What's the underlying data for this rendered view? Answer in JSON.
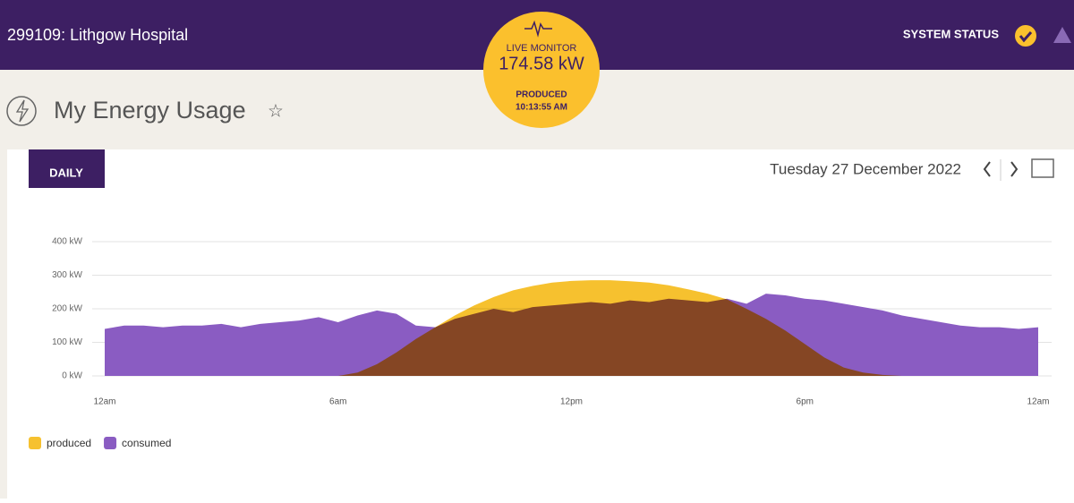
{
  "header": {
    "site": "299109: Lithgow Hospital",
    "status": "SYSTEM STATUS"
  },
  "monitor": {
    "label": "LIVE MONITOR",
    "reading": "174.58 kW",
    "kind": "PRODUCED",
    "time": "10:13:55 AM"
  },
  "page": {
    "title": "My Energy Usage",
    "tab": "DAILY",
    "date": "Tuesday 27 December 2022"
  },
  "chart_data": {
    "type": "area",
    "x": [
      0,
      0.5,
      1,
      1.5,
      2,
      2.5,
      3,
      3.5,
      4,
      4.5,
      5,
      5.5,
      6,
      6.5,
      7,
      7.5,
      8,
      8.5,
      9,
      9.5,
      10,
      10.5,
      11,
      11.5,
      12,
      12.5,
      13,
      13.5,
      14,
      14.5,
      15,
      15.5,
      16,
      16.5,
      17,
      17.5,
      18,
      18.5,
      19,
      19.5,
      20,
      20.5,
      21,
      21.5,
      22,
      22.5,
      23,
      23.5,
      24
    ],
    "xlim": [
      0,
      24
    ],
    "xticks": [
      {
        "value": 0,
        "label": "12am"
      },
      {
        "value": 6,
        "label": "6am"
      },
      {
        "value": 12,
        "label": "12pm"
      },
      {
        "value": 18,
        "label": "6pm"
      },
      {
        "value": 24,
        "label": "12am"
      }
    ],
    "ylim": [
      0,
      400
    ],
    "yticks": [
      {
        "value": 0,
        "label": "0 kW"
      },
      {
        "value": 100,
        "label": "100 kW"
      },
      {
        "value": 200,
        "label": "200 kW"
      },
      {
        "value": 300,
        "label": "300 kW"
      },
      {
        "value": 400,
        "label": "400 kW"
      }
    ],
    "grid": true,
    "series": [
      {
        "name": "consumed",
        "color": "#8a5cc2",
        "values": [
          140,
          150,
          150,
          145,
          150,
          150,
          155,
          145,
          155,
          160,
          165,
          175,
          160,
          180,
          195,
          185,
          150,
          145,
          170,
          185,
          200,
          190,
          205,
          210,
          215,
          220,
          215,
          225,
          220,
          230,
          225,
          220,
          230,
          215,
          245,
          240,
          230,
          225,
          215,
          205,
          195,
          180,
          170,
          160,
          150,
          145,
          145,
          140,
          145
        ]
      },
      {
        "name": "produced",
        "color": "#f6c12f",
        "values": [
          0,
          0,
          0,
          0,
          0,
          0,
          0,
          0,
          0,
          0,
          0,
          0,
          0,
          10,
          35,
          70,
          110,
          145,
          180,
          210,
          235,
          255,
          268,
          278,
          283,
          285,
          285,
          282,
          278,
          270,
          258,
          245,
          228,
          200,
          170,
          135,
          95,
          55,
          25,
          10,
          3,
          0,
          0,
          0,
          0,
          0,
          0,
          0,
          0
        ]
      }
    ]
  }
}
